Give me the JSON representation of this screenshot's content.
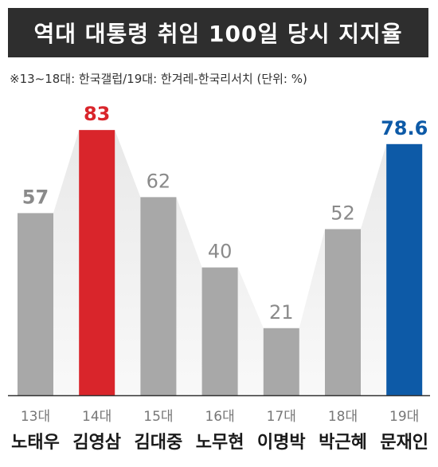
{
  "header": {
    "title": "역대 대통령 취임 100일 당시 지지율",
    "subtitle": "※13∼18대: 한국갤럽/19대: 한겨레-한국리서치 (단위: %)"
  },
  "colors": {
    "title_bg": "#2e2e2e",
    "bar_default": "#a8a8a8",
    "bar_highlight_max_past": "#d9252b",
    "bar_current": "#0d5aa7",
    "label_default": "#8a8a8a",
    "shadow": "#e6e6e6"
  },
  "chart_data": {
    "type": "bar",
    "title": "역대 대통령 취임 100일 당시 지지율",
    "subtitle": "※13∼18대: 한국갤럽/19대: 한겨레-한국리서치 (단위: %)",
    "categories": [
      "13대",
      "14대",
      "15대",
      "16대",
      "17대",
      "18대",
      "19대"
    ],
    "names": [
      "노태우",
      "김영삼",
      "김대중",
      "노무현",
      "이명박",
      "박근혜",
      "문재인"
    ],
    "values": [
      57,
      83,
      62,
      40,
      21,
      52,
      78.6
    ],
    "value_labels": [
      "57",
      "83",
      "62",
      "40",
      "21",
      "52",
      "78.6"
    ],
    "bar_colors": [
      "#a8a8a8",
      "#d9252b",
      "#a8a8a8",
      "#a8a8a8",
      "#a8a8a8",
      "#a8a8a8",
      "#0d5aa7"
    ],
    "label_colors": [
      "#8a8a8a",
      "#d9252b",
      "#8a8a8a",
      "#8a8a8a",
      "#8a8a8a",
      "#8a8a8a",
      "#0d5aa7"
    ],
    "ylim": [
      0,
      100
    ],
    "xlabel": "",
    "ylabel": "",
    "grid": false,
    "legend": "none"
  }
}
